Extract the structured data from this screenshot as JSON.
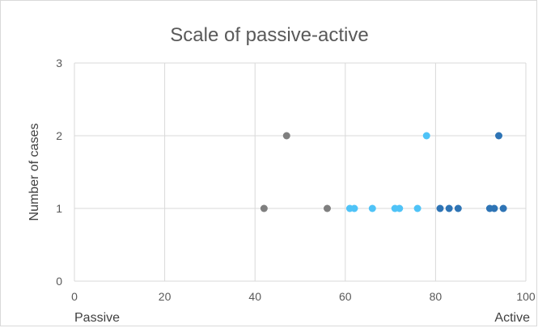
{
  "chart_data": {
    "type": "scatter",
    "title": "Scale of passive-active",
    "xlabel": "",
    "ylabel": "Number of cases",
    "xlim": [
      0,
      100
    ],
    "ylim": [
      0,
      3
    ],
    "x_ticks": [
      "0",
      "20",
      "40",
      "60",
      "80",
      "100"
    ],
    "y_ticks": [
      "0",
      "1",
      "2",
      "3"
    ],
    "x_tick_values": [
      0,
      20,
      40,
      60,
      80,
      100
    ],
    "y_tick_values": [
      0,
      1,
      2,
      3
    ],
    "grid": true,
    "legend": "none",
    "annotations": {
      "left": "Passive",
      "right": "Active"
    },
    "series": [
      {
        "color": "#7f7f7f",
        "points": [
          {
            "x": 42,
            "y": 1
          },
          {
            "x": 47,
            "y": 2
          },
          {
            "x": 56,
            "y": 1
          }
        ]
      },
      {
        "color": "#4fc3f7",
        "points": [
          {
            "x": 61,
            "y": 1
          },
          {
            "x": 62,
            "y": 1
          },
          {
            "x": 66,
            "y": 1
          },
          {
            "x": 71,
            "y": 1
          },
          {
            "x": 72,
            "y": 1
          },
          {
            "x": 76,
            "y": 1
          },
          {
            "x": 78,
            "y": 2
          }
        ]
      },
      {
        "color": "#2e74b5",
        "points": [
          {
            "x": 81,
            "y": 1
          },
          {
            "x": 83,
            "y": 1
          },
          {
            "x": 85,
            "y": 1
          },
          {
            "x": 92,
            "y": 1
          },
          {
            "x": 93,
            "y": 1
          },
          {
            "x": 95,
            "y": 1
          },
          {
            "x": 94,
            "y": 2
          }
        ]
      }
    ]
  }
}
